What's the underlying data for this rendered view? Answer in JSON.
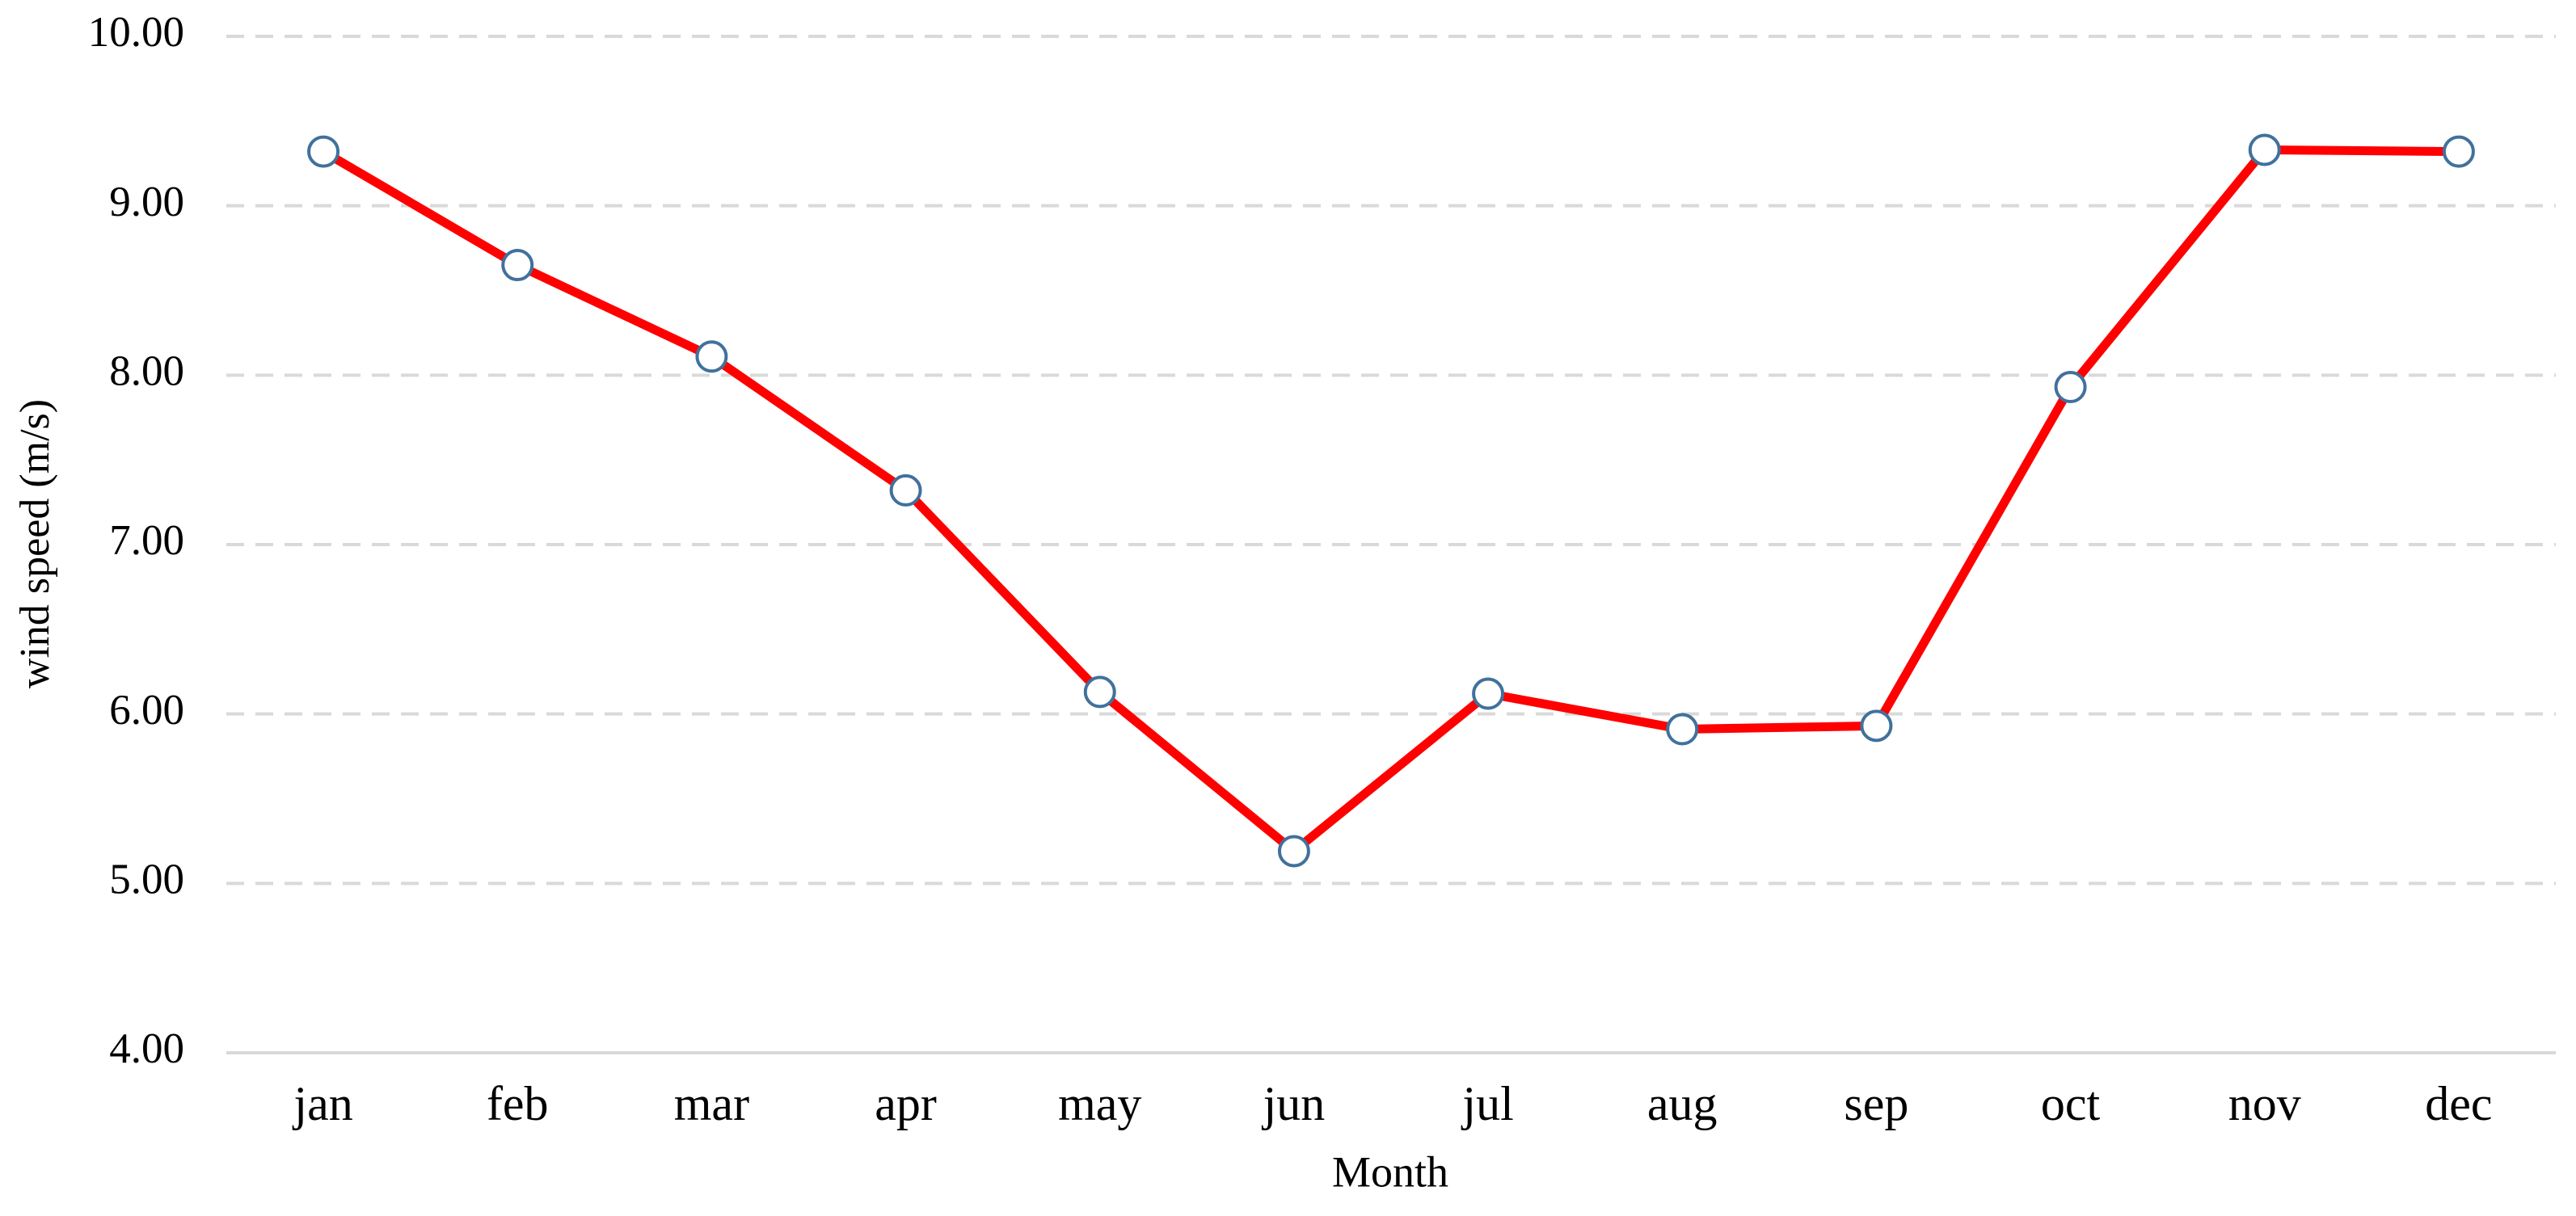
{
  "chart_data": {
    "type": "line",
    "x_label": "Month",
    "y_label": "wind speed (m/s)",
    "categories": [
      "jan",
      "feb",
      "mar",
      "apr",
      "may",
      "jun",
      "jul",
      "aug",
      "sep",
      "oct",
      "nov",
      "dec"
    ],
    "values": [
      9.32,
      8.65,
      8.11,
      7.32,
      6.13,
      5.19,
      6.12,
      5.91,
      5.93,
      7.93,
      9.33,
      9.32
    ],
    "color": "#ff0000",
    "ylim": [
      4,
      10
    ],
    "yticks": [
      {
        "value": 4,
        "label": "4.00"
      },
      {
        "value": 5,
        "label": "5.00"
      },
      {
        "value": 6,
        "label": "6.00"
      },
      {
        "value": 7,
        "label": "7.00"
      },
      {
        "value": 8,
        "label": "8.00"
      },
      {
        "value": 9,
        "label": "9.00"
      },
      {
        "value": 10,
        "label": "10.00"
      }
    ],
    "grid": true
  }
}
